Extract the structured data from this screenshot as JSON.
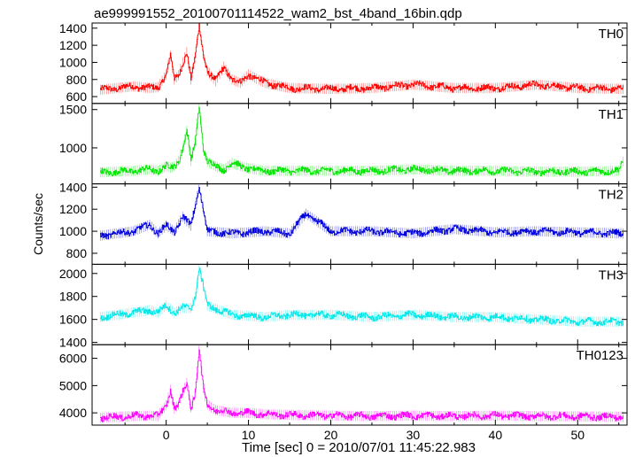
{
  "chart_data": {
    "type": "line",
    "title": "ae999991552_20100701114522_wam2_bst_4band_16bin.qdp",
    "xlabel": "Time [sec] 0 = 2010/07/01 11:45:22.983",
    "ylabel": "Counts/sec",
    "xlim": [
      -9,
      56
    ],
    "xticks": [
      0,
      10,
      20,
      30,
      40,
      50
    ],
    "grid": false,
    "panels": [
      {
        "name": "TH0",
        "color": "#ff0000",
        "ylim": [
          520,
          1460
        ],
        "yticks": [
          600,
          800,
          1000,
          1200,
          1400
        ],
        "x": [
          -8,
          -6,
          -4,
          -2,
          -1,
          0,
          0.5,
          1,
          1.5,
          2,
          2.5,
          3,
          3.5,
          4,
          4.5,
          5,
          6,
          7,
          8,
          9,
          10,
          12,
          15,
          20,
          25,
          30,
          35,
          40,
          45,
          50,
          55.5
        ],
        "y": [
          680,
          700,
          720,
          700,
          710,
          860,
          1080,
          800,
          850,
          1000,
          1120,
          800,
          1050,
          1430,
          1100,
          900,
          780,
          950,
          800,
          760,
          860,
          760,
          700,
          690,
          700,
          740,
          700,
          700,
          740,
          700,
          690
        ]
      },
      {
        "name": "TH1",
        "color": "#00e600",
        "ylim": [
          530,
          1580
        ],
        "yticks": [
          1000,
          1500
        ],
        "x": [
          -8,
          -6,
          -4,
          -2,
          -1,
          0,
          0.5,
          1,
          1.5,
          2,
          2.5,
          3,
          3.5,
          4,
          4.5,
          5,
          6,
          7,
          8,
          10,
          12,
          15,
          20,
          25,
          30,
          35,
          40,
          45,
          50,
          55,
          55.5
        ],
        "y": [
          680,
          690,
          700,
          720,
          700,
          760,
          740,
          760,
          830,
          1000,
          1220,
          830,
          1060,
          1550,
          1000,
          820,
          760,
          720,
          800,
          730,
          700,
          700,
          700,
          700,
          720,
          700,
          700,
          690,
          690,
          700,
          820
        ]
      },
      {
        "name": "TH2",
        "color": "#0000dd",
        "ylim": [
          700,
          1430
        ],
        "yticks": [
          800,
          1000,
          1200,
          1400
        ],
        "x": [
          -8,
          -6,
          -4,
          -2,
          -1,
          0,
          1,
          2,
          3,
          3.5,
          4,
          5,
          8,
          12,
          15,
          17,
          20,
          25,
          30,
          35,
          40,
          45,
          50,
          55.5
        ],
        "y": [
          960,
          980,
          1000,
          1060,
          980,
          1050,
          1000,
          1130,
          1050,
          1230,
          1400,
          1000,
          980,
          1000,
          980,
          1160,
          1000,
          1000,
          980,
          1020,
          990,
          1000,
          990,
          980
        ]
      },
      {
        "name": "TH3",
        "color": "#00e8e8",
        "ylim": [
          1380,
          2080
        ],
        "yticks": [
          1400,
          1600,
          1800,
          2000
        ],
        "x": [
          -8,
          -6,
          -4,
          -2,
          -1,
          0,
          1,
          2,
          3,
          3.5,
          4,
          5,
          8,
          12,
          15,
          20,
          25,
          30,
          35,
          40,
          45,
          50,
          55.5
        ],
        "y": [
          1620,
          1640,
          1660,
          1680,
          1660,
          1720,
          1660,
          1700,
          1700,
          1800,
          2050,
          1720,
          1640,
          1620,
          1640,
          1640,
          1620,
          1640,
          1620,
          1620,
          1600,
          1580,
          1580
        ]
      },
      {
        "name": "TH0123",
        "color": "#ff00ff",
        "ylim": [
          3550,
          6500
        ],
        "yticks": [
          4000,
          5000,
          6000
        ],
        "x": [
          -8,
          -6,
          -4,
          -2,
          -1,
          0,
          0.5,
          1,
          1.5,
          2,
          2.5,
          3,
          3.5,
          4,
          4.5,
          5,
          6,
          7,
          8,
          10,
          12,
          15,
          20,
          25,
          30,
          35,
          40,
          45,
          50,
          55.5
        ],
        "y": [
          3820,
          3850,
          3880,
          3900,
          3880,
          4280,
          4850,
          4150,
          4300,
          4750,
          5100,
          4200,
          4700,
          6300,
          4900,
          4300,
          4100,
          4050,
          4000,
          4000,
          3950,
          3920,
          3900,
          3880,
          3900,
          3880,
          3900,
          3880,
          3870,
          3850
        ]
      }
    ]
  }
}
